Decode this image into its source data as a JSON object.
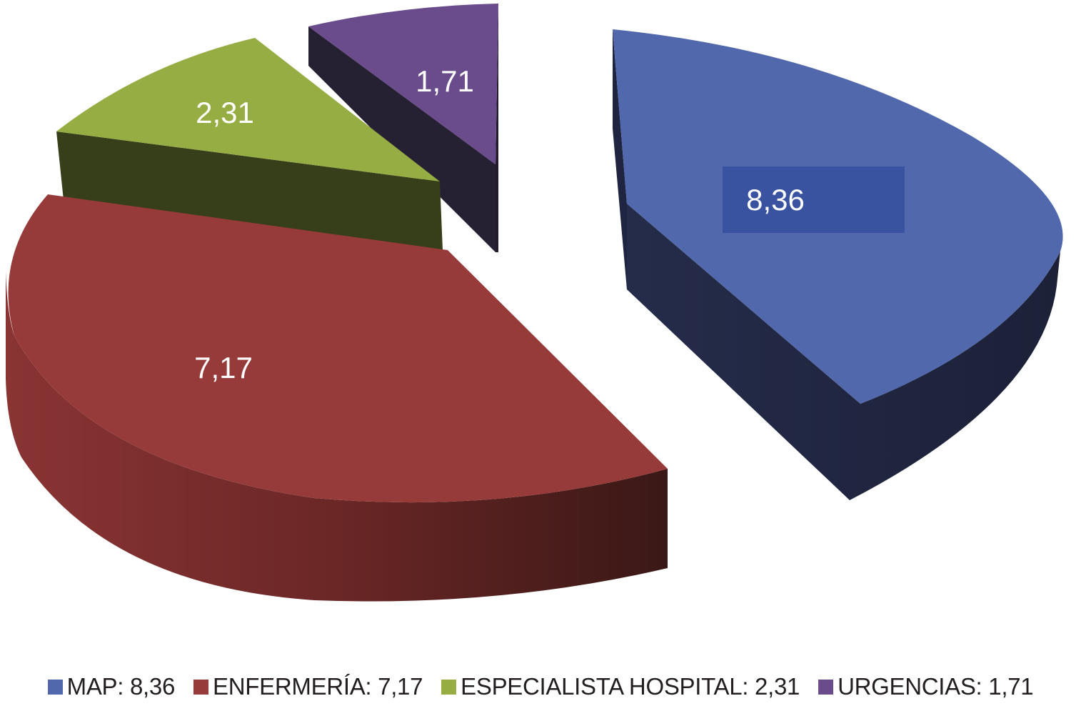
{
  "chart_data": {
    "type": "pie",
    "style": "3d-exploded",
    "title": "",
    "categories": [
      "MAP",
      "ENFERMERÍA",
      "ESPECIALISTA HOSPITAL",
      "URGENCIAS"
    ],
    "values": [
      8.36,
      7.17,
      2.31,
      1.71
    ],
    "data_labels": [
      "8,36",
      "7,17",
      "2,31",
      "1,71"
    ],
    "legend_placement": "bottom",
    "legend": [
      {
        "name": "MAP",
        "value_text": "8,36",
        "text": "MAP: 8,36"
      },
      {
        "name": "ENFERMERÍA",
        "value_text": "7,17",
        "text": "ENFERMERÍA: 7,17"
      },
      {
        "name": "ESPECIALISTA HOSPITAL",
        "value_text": "2,31",
        "text": "ESPECIALISTA HOSPITAL: 2,31"
      },
      {
        "name": "URGENCIAS",
        "value_text": "1,71",
        "text": "URGENCIAS: 1,71"
      }
    ],
    "colors": {
      "MAP": {
        "top": "#5168ac",
        "side": "#1f2540",
        "label_box": "#3953a0"
      },
      "ENFERMERÍA": {
        "top": "#963a3a",
        "side": "#5a2220"
      },
      "ESPECIALISTA HOSPITAL": {
        "top": "#96ad43",
        "side": "#363f1a"
      },
      "URGENCIAS": {
        "top": "#6a4b8b",
        "side": "#262033"
      }
    },
    "label_color": "#ffffff"
  }
}
